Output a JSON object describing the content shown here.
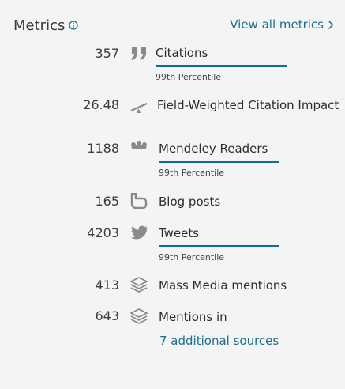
{
  "header": {
    "title": "Metrics",
    "view_all_label": "View all metrics"
  },
  "metrics": [
    {
      "value": "357",
      "label": "Citations",
      "percentile": "99th Percentile",
      "icon": "quote-icon",
      "percentile_bar": 0.99
    },
    {
      "value": "26.48",
      "label": "Field-Weighted Citation Impact",
      "icon": "seesaw-icon"
    },
    {
      "value": "1188",
      "label": "Mendeley Readers",
      "percentile": "99th Percentile",
      "icon": "mendeley-icon",
      "percentile_bar": 0.99
    },
    {
      "value": "165",
      "label": "Blog posts",
      "icon": "blog-icon"
    },
    {
      "value": "4203",
      "label": "Tweets",
      "percentile": "99th Percentile",
      "icon": "twitter-bird-icon",
      "percentile_bar": 0.99
    },
    {
      "value": "413",
      "label": "Mass Media mentions",
      "icon": "layers-icon"
    },
    {
      "value": "643",
      "label": "Mentions in",
      "icon": "layers-icon",
      "link": "7 additional sources"
    }
  ],
  "colors": {
    "accent": "#0e6e93",
    "link": "#1e6f8f",
    "icon": "#8a8a8a",
    "background": "#f4f4f4"
  }
}
